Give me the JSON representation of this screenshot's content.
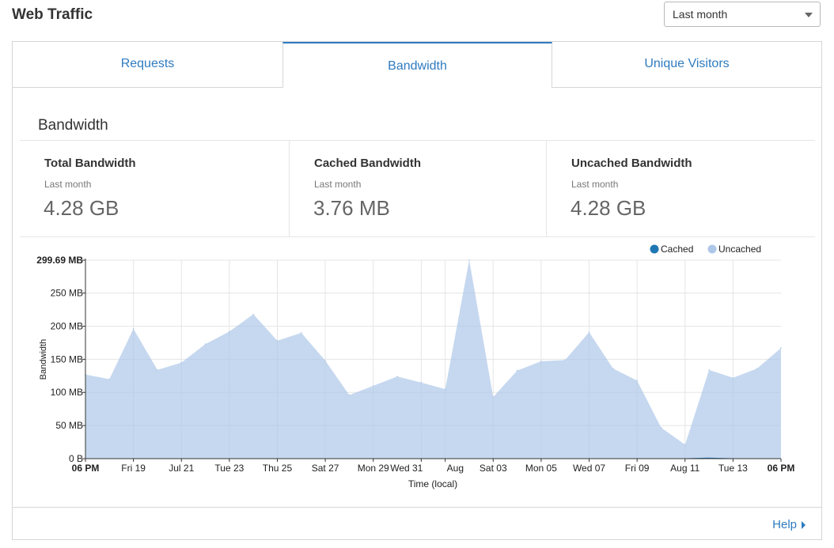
{
  "header": {
    "title": "Web Traffic"
  },
  "range_select": {
    "value": "Last month"
  },
  "tabs": [
    {
      "label": "Requests",
      "active": false
    },
    {
      "label": "Bandwidth",
      "active": true
    },
    {
      "label": "Unique Visitors",
      "active": false
    }
  ],
  "section": {
    "title": "Bandwidth"
  },
  "stats": [
    {
      "label": "Total Bandwidth",
      "sub": "Last month",
      "value": "4.28 GB"
    },
    {
      "label": "Cached Bandwidth",
      "sub": "Last month",
      "value": "3.76 MB"
    },
    {
      "label": "Uncached Bandwidth",
      "sub": "Last month",
      "value": "4.28 GB"
    }
  ],
  "colors": {
    "accent": "#2f7bbf",
    "cached": "#1f77b4",
    "uncached": "#aec7e8"
  },
  "chart_data": {
    "type": "area",
    "ylabel": "Bandwidth",
    "xlabel": "Time (local)",
    "ylim": [
      0,
      299.69
    ],
    "y_ticks": [
      {
        "value": 0,
        "label": "0 B"
      },
      {
        "value": 50,
        "label": "50 MB"
      },
      {
        "value": 100,
        "label": "100 MB"
      },
      {
        "value": 150,
        "label": "150 MB"
      },
      {
        "value": 200,
        "label": "200 MB"
      },
      {
        "value": 250,
        "label": "250 MB"
      },
      {
        "value": 299.69,
        "label": "299.69 MB"
      }
    ],
    "x_ticks": [
      {
        "index": 0,
        "label": "06 PM",
        "bold": true
      },
      {
        "index": 2,
        "label": "Fri 19"
      },
      {
        "index": 4,
        "label": "Jul 21"
      },
      {
        "index": 6,
        "label": "Tue 23"
      },
      {
        "index": 8,
        "label": "Thu 25"
      },
      {
        "index": 10,
        "label": "Sat 27"
      },
      {
        "index": 12,
        "label": "Mon 29"
      },
      {
        "index": 14,
        "label": "Wed 31"
      },
      {
        "index": 15,
        "label": "Aug"
      },
      {
        "index": 17,
        "label": "Sat 03"
      },
      {
        "index": 19,
        "label": "Mon 05"
      },
      {
        "index": 21,
        "label": "Wed 07"
      },
      {
        "index": 23,
        "label": "Fri 09"
      },
      {
        "index": 25,
        "label": "Aug 11"
      },
      {
        "index": 27,
        "label": "Tue 13"
      },
      {
        "index": 29,
        "label": "06 PM",
        "bold": true
      }
    ],
    "legend": {
      "placement": "top-right"
    },
    "series": [
      {
        "name": "Cached",
        "values": [
          0,
          0,
          0,
          0,
          0,
          0,
          0,
          0,
          0,
          0,
          0,
          0,
          0,
          0,
          0,
          0,
          0,
          0,
          0,
          0,
          0,
          0,
          0,
          0,
          0,
          0,
          1,
          0,
          0,
          0
        ]
      },
      {
        "name": "Uncached",
        "values": [
          127,
          120,
          196,
          134,
          145,
          173,
          192,
          218,
          178,
          190,
          148,
          96,
          110,
          124,
          115,
          105,
          300,
          93,
          133,
          147,
          149,
          191,
          136,
          118,
          47,
          21,
          134,
          122,
          136,
          167
        ]
      }
    ]
  },
  "footer": {
    "help_label": "Help"
  }
}
